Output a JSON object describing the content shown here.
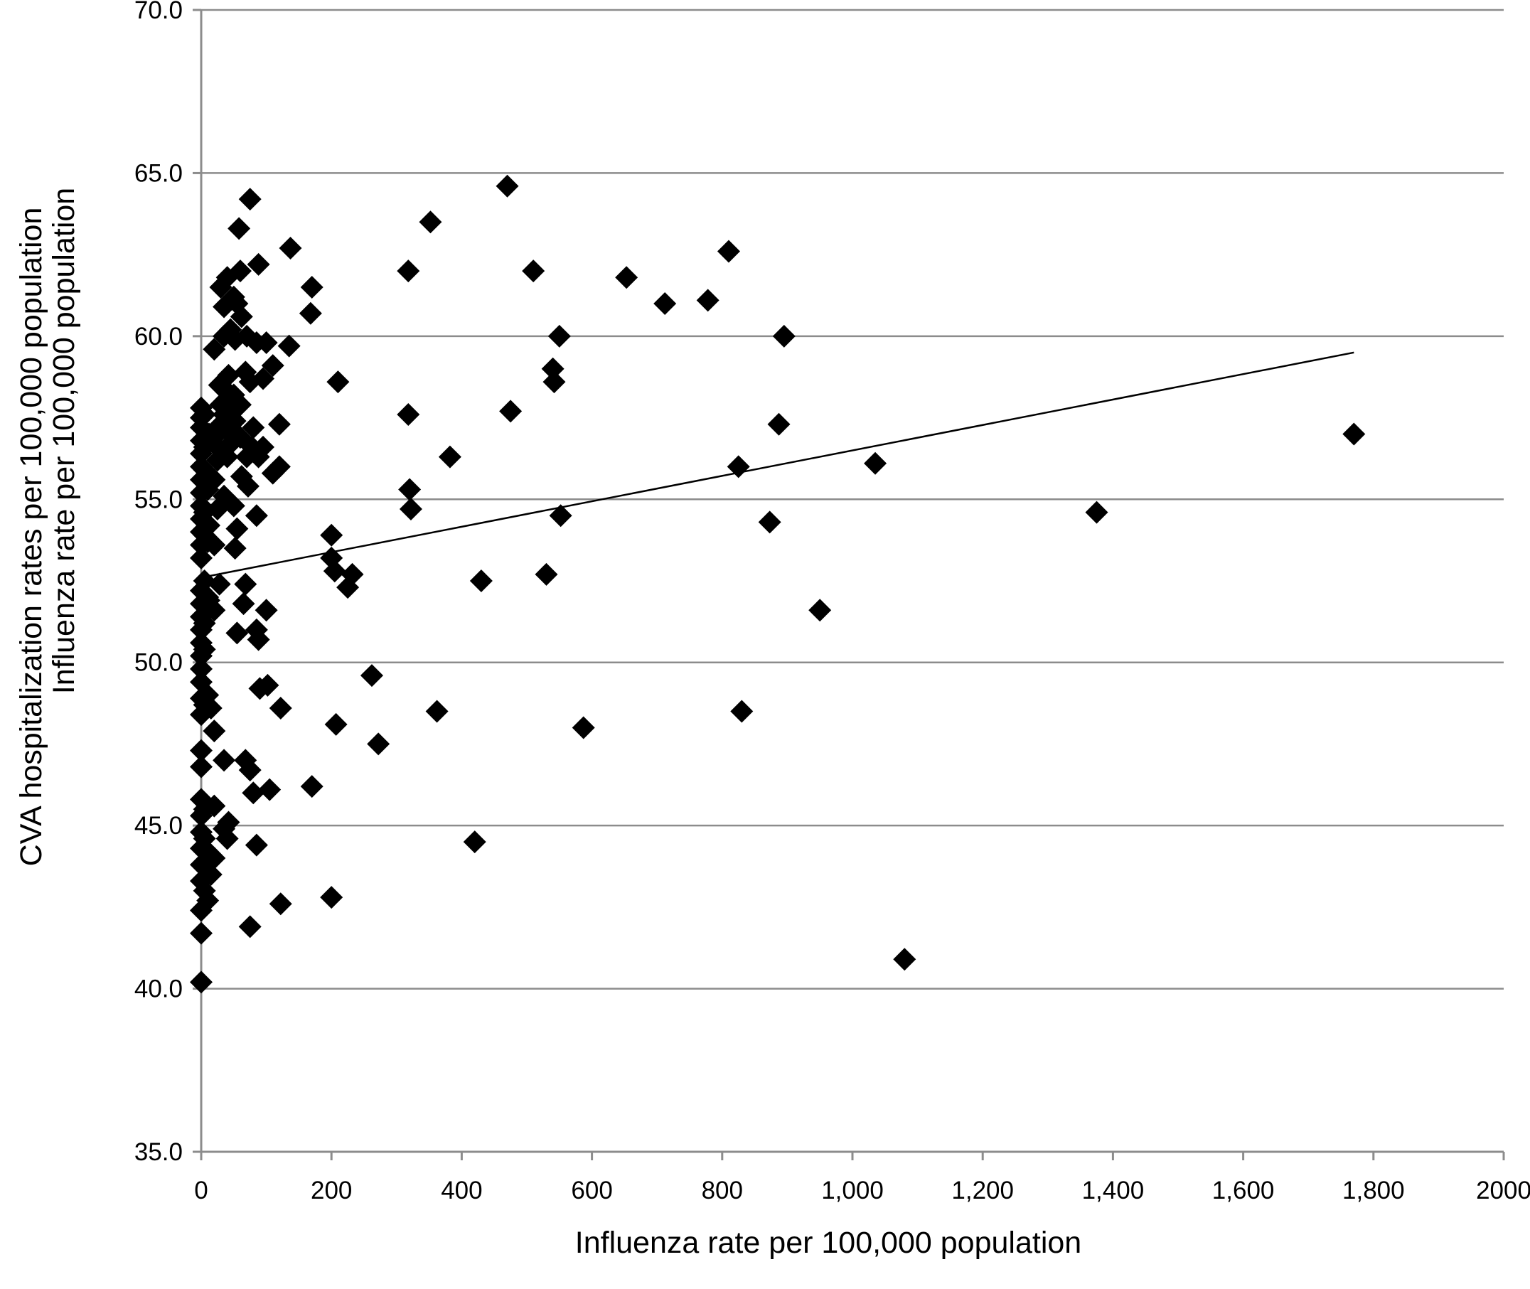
{
  "chart_data": {
    "type": "scatter",
    "xlabel": "Influenza rate per 100,000 population",
    "ylabel_lines": [
      "CVA hospitalization rates per 100,000 population",
      "Influenza rate per 100,000 population"
    ],
    "xlim": [
      0,
      2000
    ],
    "ylim": [
      35,
      70
    ],
    "x_ticks": [
      0,
      200,
      400,
      600,
      800,
      1000,
      1200,
      1400,
      1600,
      1800,
      2000
    ],
    "x_tick_labels": [
      "0",
      "200",
      "400",
      "600",
      "800",
      "1,000",
      "1,200",
      "1,400",
      "1,600",
      "1,800",
      "2000"
    ],
    "y_ticks": [
      35,
      40,
      45,
      50,
      55,
      60,
      65,
      70
    ],
    "y_tick_labels": [
      "35.0",
      "40.0",
      "45.0",
      "50.0",
      "55.0",
      "60.0",
      "65.0",
      "70.0"
    ],
    "grid": "horizontal",
    "marker": "diamond",
    "trendline": {
      "x": [
        0,
        1770
      ],
      "y": [
        52.6,
        59.5
      ]
    },
    "points": [
      [
        0,
        57.8
      ],
      [
        0,
        57.5
      ],
      [
        0,
        57.2
      ],
      [
        0,
        56.8
      ],
      [
        0,
        56.4
      ],
      [
        0,
        56.0
      ],
      [
        0,
        55.6
      ],
      [
        0,
        55.2
      ],
      [
        0,
        54.8
      ],
      [
        0,
        54.4
      ],
      [
        0,
        54.0
      ],
      [
        0,
        53.6
      ],
      [
        0,
        53.2
      ],
      [
        0,
        52.2
      ],
      [
        0,
        51.8
      ],
      [
        0,
        51.4
      ],
      [
        0,
        51.0
      ],
      [
        0,
        50.6
      ],
      [
        0,
        50.2
      ],
      [
        0,
        49.8
      ],
      [
        0,
        49.4
      ],
      [
        0,
        48.9
      ],
      [
        0,
        48.4
      ],
      [
        0,
        47.3
      ],
      [
        0,
        46.8
      ],
      [
        0,
        45.8
      ],
      [
        0,
        45.3
      ],
      [
        0,
        44.8
      ],
      [
        0,
        44.3
      ],
      [
        0,
        43.8
      ],
      [
        0,
        43.3
      ],
      [
        0,
        42.4
      ],
      [
        0,
        41.7
      ],
      [
        0,
        40.2
      ],
      [
        5,
        57.6
      ],
      [
        5,
        56.6
      ],
      [
        5,
        55.9
      ],
      [
        5,
        54.6
      ],
      [
        5,
        53.9
      ],
      [
        5,
        52.5
      ],
      [
        5,
        51.2
      ],
      [
        5,
        50.4
      ],
      [
        5,
        48.7
      ],
      [
        5,
        45.5
      ],
      [
        5,
        44.6
      ],
      [
        5,
        43.0
      ],
      [
        10,
        55.3
      ],
      [
        10,
        53.7
      ],
      [
        10,
        52.0
      ],
      [
        10,
        51.6
      ],
      [
        10,
        49.0
      ],
      [
        10,
        44.2
      ],
      [
        10,
        42.7
      ],
      [
        12,
        57.0
      ],
      [
        12,
        54.2
      ],
      [
        12,
        51.9
      ],
      [
        15,
        48.6
      ],
      [
        15,
        44.1
      ],
      [
        15,
        43.5
      ],
      [
        20,
        59.6
      ],
      [
        20,
        56.9
      ],
      [
        20,
        55.6
      ],
      [
        20,
        53.6
      ],
      [
        20,
        51.6
      ],
      [
        20,
        47.9
      ],
      [
        20,
        45.6
      ],
      [
        20,
        44.0
      ],
      [
        25,
        57.2
      ],
      [
        25,
        56.2
      ],
      [
        25,
        54.7
      ],
      [
        28,
        58.5
      ],
      [
        28,
        52.4
      ],
      [
        30,
        61.5
      ],
      [
        30,
        57.9
      ],
      [
        30,
        56.5
      ],
      [
        35,
        60.9
      ],
      [
        35,
        60.0
      ],
      [
        35,
        57.6
      ],
      [
        35,
        55.1
      ],
      [
        35,
        47.0
      ],
      [
        35,
        44.9
      ],
      [
        40,
        61.8
      ],
      [
        40,
        58.3
      ],
      [
        40,
        57.1
      ],
      [
        40,
        56.3
      ],
      [
        40,
        44.6
      ],
      [
        42,
        58.8
      ],
      [
        42,
        45.1
      ],
      [
        45,
        60.2
      ],
      [
        45,
        57.8
      ],
      [
        45,
        56.7
      ],
      [
        50,
        61.2
      ],
      [
        50,
        58.2
      ],
      [
        50,
        54.8
      ],
      [
        52,
        59.9
      ],
      [
        52,
        57.4
      ],
      [
        52,
        53.5
      ],
      [
        55,
        61.0
      ],
      [
        55,
        54.1
      ],
      [
        55,
        50.9
      ],
      [
        58,
        63.3
      ],
      [
        60,
        62.0
      ],
      [
        60,
        57.9
      ],
      [
        60,
        56.9
      ],
      [
        62,
        60.6
      ],
      [
        62,
        55.7
      ],
      [
        65,
        51.8
      ],
      [
        68,
        58.9
      ],
      [
        68,
        52.4
      ],
      [
        68,
        47.0
      ],
      [
        70,
        60.0
      ],
      [
        70,
        56.3
      ],
      [
        72,
        55.4
      ],
      [
        75,
        58.6
      ],
      [
        75,
        64.2
      ],
      [
        75,
        46.7
      ],
      [
        75,
        41.9
      ],
      [
        78,
        56.6
      ],
      [
        80,
        57.2
      ],
      [
        80,
        46.0
      ],
      [
        85,
        59.8
      ],
      [
        85,
        54.5
      ],
      [
        85,
        51.0
      ],
      [
        85,
        44.4
      ],
      [
        88,
        62.2
      ],
      [
        88,
        50.7
      ],
      [
        88,
        56.3
      ],
      [
        90,
        49.2
      ],
      [
        95,
        58.7
      ],
      [
        95,
        56.6
      ],
      [
        100,
        59.8
      ],
      [
        100,
        51.6
      ],
      [
        102,
        49.3
      ],
      [
        105,
        46.1
      ],
      [
        110,
        59.1
      ],
      [
        110,
        55.8
      ],
      [
        120,
        57.3
      ],
      [
        120,
        56.0
      ],
      [
        122,
        48.6
      ],
      [
        122,
        42.6
      ],
      [
        135,
        59.7
      ],
      [
        137,
        62.7
      ],
      [
        168,
        60.7
      ],
      [
        170,
        61.5
      ],
      [
        170,
        46.2
      ],
      [
        200,
        53.9
      ],
      [
        200,
        53.2
      ],
      [
        200,
        42.8
      ],
      [
        205,
        52.8
      ],
      [
        207,
        48.1
      ],
      [
        210,
        58.6
      ],
      [
        225,
        52.3
      ],
      [
        232,
        52.7
      ],
      [
        262,
        49.6
      ],
      [
        272,
        47.5
      ],
      [
        318,
        62.0
      ],
      [
        318,
        57.6
      ],
      [
        320,
        55.3
      ],
      [
        322,
        54.7
      ],
      [
        352,
        63.5
      ],
      [
        362,
        48.5
      ],
      [
        382,
        56.3
      ],
      [
        420,
        44.5
      ],
      [
        430,
        52.5
      ],
      [
        470,
        64.6
      ],
      [
        475,
        57.7
      ],
      [
        510,
        62.0
      ],
      [
        530,
        52.7
      ],
      [
        540,
        59.0
      ],
      [
        542,
        58.6
      ],
      [
        550,
        60.0
      ],
      [
        552,
        54.5
      ],
      [
        587,
        48.0
      ],
      [
        653,
        61.8
      ],
      [
        712,
        61.0
      ],
      [
        778,
        61.1
      ],
      [
        810,
        62.6
      ],
      [
        825,
        56.0
      ],
      [
        830,
        48.5
      ],
      [
        873,
        54.3
      ],
      [
        887,
        57.3
      ],
      [
        895,
        60.0
      ],
      [
        950,
        51.6
      ],
      [
        1035,
        56.1
      ],
      [
        1080,
        40.9
      ],
      [
        1375,
        54.6
      ],
      [
        1770,
        57.0
      ]
    ]
  }
}
